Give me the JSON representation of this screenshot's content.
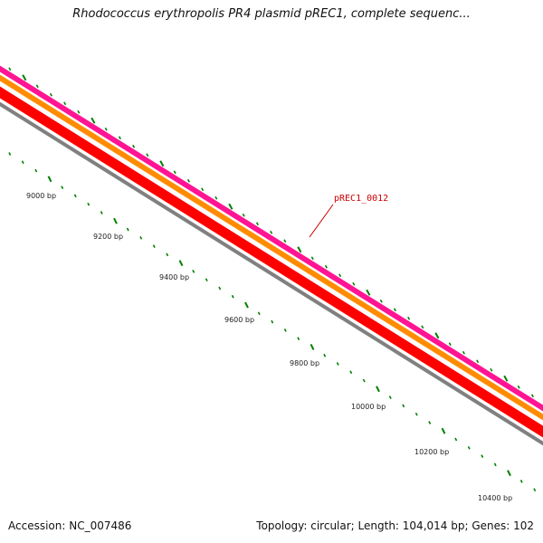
{
  "title": "Rhodococcus erythropolis PR4 plasmid pREC1, complete sequenc...",
  "feature_label": "pREC1_0012",
  "footer": {
    "accession": "Accession: NC_007486",
    "summary": "Topology: circular; Length: 104,014 bp; Genes: 102"
  },
  "colors": {
    "cds_forward": "#ff1493",
    "gene_forward": "#ff8c00",
    "gene_reverse": "#ff0000",
    "backbone": "#808080",
    "ticks": "#008000",
    "label_line": "#cc0000",
    "label_text": "#cc0000"
  },
  "scale": {
    "labels": [
      "9000 bp",
      "9200 bp",
      "9400 bp",
      "9600 bp",
      "9800 bp",
      "10000 bp",
      "10200 bp",
      "10400 bp"
    ]
  }
}
